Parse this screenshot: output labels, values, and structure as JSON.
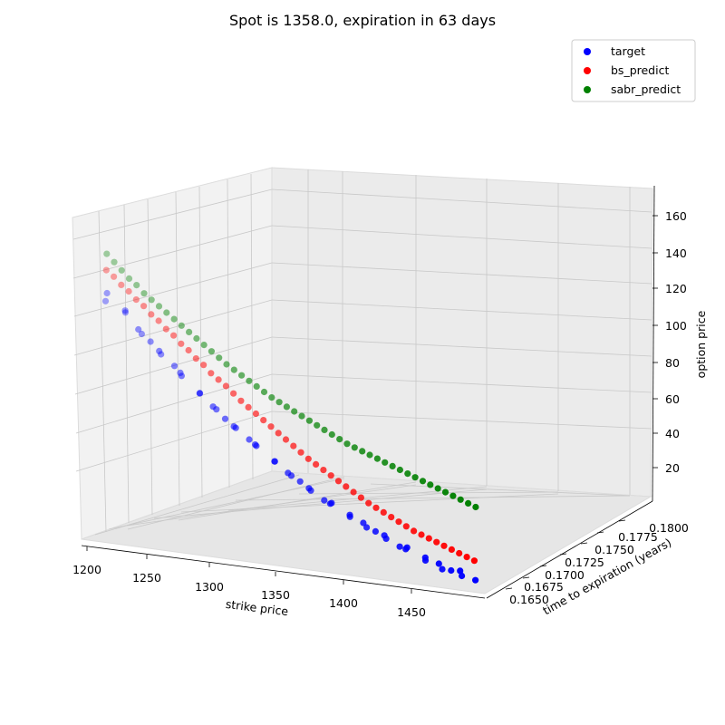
{
  "chart_data": {
    "type": "scatter",
    "title": "Spot is 1358.0, expiration in 63 days",
    "xlabel": "strike price",
    "ylabel": "time to expiration (years)",
    "zlabel": "option price",
    "x_ticks": [
      "1200",
      "1250",
      "1300",
      "1350",
      "1400",
      "1450"
    ],
    "y_ticks": [
      "0.1650",
      "0.1675",
      "0.1700",
      "0.1725",
      "0.1750",
      "0.1775",
      "0.1800"
    ],
    "z_ticks": [
      "20",
      "40",
      "60",
      "80",
      "100",
      "120",
      "140",
      "160"
    ],
    "xlim": [
      1200,
      1460
    ],
    "zlim": [
      5,
      170
    ],
    "grid": true,
    "legend_position": "top-right",
    "time_to_expiration": 0.1726,
    "strikes": [
      1210,
      1215,
      1220,
      1225,
      1230,
      1235,
      1240,
      1245,
      1250,
      1255,
      1260,
      1265,
      1270,
      1275,
      1280,
      1285,
      1290,
      1295,
      1300,
      1305,
      1310,
      1315,
      1320,
      1325,
      1330,
      1335,
      1340,
      1345,
      1350,
      1355,
      1360,
      1365,
      1370,
      1375,
      1380,
      1385,
      1390,
      1395,
      1400,
      1405,
      1410,
      1415,
      1420,
      1425,
      1430,
      1435,
      1440,
      1445,
      1450,
      1455
    ],
    "series": [
      {
        "name": "target",
        "color": "#0000ff",
        "values": [
          138,
          140,
          135,
          133,
          125,
          123,
          119,
          114,
          112,
          108,
          104,
          100,
          96,
          93,
          89,
          86,
          82,
          79,
          76,
          73,
          70,
          67,
          64,
          61,
          58,
          55,
          53,
          50,
          47.5,
          45,
          43,
          41,
          39,
          37,
          35,
          33,
          31,
          29,
          27,
          25,
          23.5,
          22,
          20.5,
          19,
          17.5,
          16,
          15,
          14,
          13,
          12
        ]
      },
      {
        "name": "bs_predict",
        "color": "#ff0000",
        "values": [
          155,
          152,
          148,
          145,
          141,
          138,
          134,
          131,
          127,
          124,
          120,
          117,
          113,
          110,
          106,
          103,
          100,
          96.5,
          93,
          90,
          87,
          84,
          81,
          78,
          75,
          72,
          69,
          66,
          63.5,
          61,
          58.5,
          56,
          53.5,
          51,
          48.5,
          46,
          44,
          42,
          40,
          38,
          36,
          34,
          32.5,
          31,
          29.5,
          28,
          26.5,
          25,
          23.5,
          22
        ]
      },
      {
        "name": "sabr_predict",
        "color": "#008000",
        "values": [
          164,
          160,
          156,
          152,
          149,
          145,
          142,
          139,
          136,
          133,
          130,
          127,
          124,
          121,
          118,
          115,
          112,
          109.5,
          107,
          104.5,
          102,
          99.5,
          97,
          95,
          93,
          91,
          89,
          87,
          85,
          83,
          81,
          79,
          77,
          75.5,
          74,
          72.5,
          71,
          69.5,
          68,
          66.5,
          65,
          63.5,
          62,
          60.5,
          59,
          57.5,
          56,
          54.5,
          53,
          51.5
        ]
      }
    ]
  }
}
